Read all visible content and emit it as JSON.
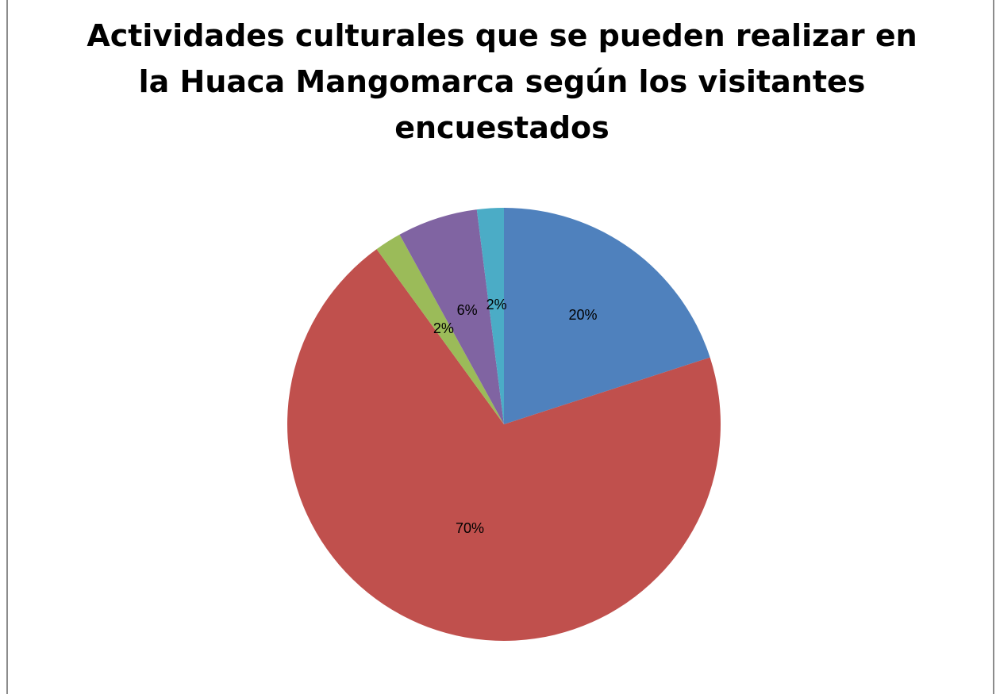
{
  "chart_data": {
    "type": "pie",
    "title_lines": [
      "Actividades culturales que se pueden realizar en",
      "la Huaca Mangomarca según los visitantes",
      "encuestados"
    ],
    "title": "Actividades culturales que se pueden realizar en la Huaca Mangomarca según los visitantes encuestados",
    "slices": [
      {
        "value": 20,
        "label": "20%",
        "color": "#4F81BD"
      },
      {
        "value": 70,
        "label": "70%",
        "color": "#C0504D"
      },
      {
        "value": 2,
        "label": "2%",
        "color": "#9BBB59"
      },
      {
        "value": 6,
        "label": "6%",
        "color": "#8064A2"
      },
      {
        "value": 2,
        "label": "2%",
        "color": "#4BACC6"
      }
    ],
    "start_angle": "12 o'clock",
    "direction": "clockwise",
    "legend": "none"
  }
}
